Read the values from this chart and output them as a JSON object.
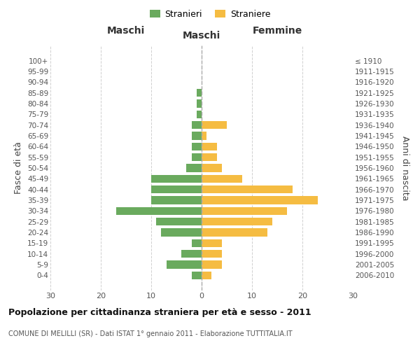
{
  "age_groups": [
    "100+",
    "95-99",
    "90-94",
    "85-89",
    "80-84",
    "75-79",
    "70-74",
    "65-69",
    "60-64",
    "55-59",
    "50-54",
    "45-49",
    "40-44",
    "35-39",
    "30-34",
    "25-29",
    "20-24",
    "15-19",
    "10-14",
    "5-9",
    "0-4"
  ],
  "birth_years": [
    "≤ 1910",
    "1911-1915",
    "1916-1920",
    "1921-1925",
    "1926-1930",
    "1931-1935",
    "1936-1940",
    "1941-1945",
    "1946-1950",
    "1951-1955",
    "1956-1960",
    "1961-1965",
    "1966-1970",
    "1971-1975",
    "1976-1980",
    "1981-1985",
    "1986-1990",
    "1991-1995",
    "1996-2000",
    "2001-2005",
    "2006-2010"
  ],
  "maschi": [
    0,
    0,
    0,
    1,
    1,
    1,
    2,
    2,
    2,
    2,
    3,
    10,
    10,
    10,
    17,
    9,
    8,
    2,
    4,
    7,
    2
  ],
  "femmine": [
    0,
    0,
    0,
    0,
    0,
    0,
    5,
    1,
    3,
    3,
    4,
    8,
    18,
    23,
    17,
    14,
    13,
    4,
    4,
    4,
    2
  ],
  "color_maschi": "#6aaa5e",
  "color_femmine": "#f5bc42",
  "title": "Popolazione per cittadinanza straniera per età e sesso - 2011",
  "subtitle": "COMUNE DI MELILLI (SR) - Dati ISTAT 1° gennaio 2011 - Elaborazione TUTTITALIA.IT",
  "ylabel_left": "Fasce di età",
  "ylabel_right": "Anni di nascita",
  "xlabel_left": "Maschi",
  "xlabel_right": "Femmine",
  "legend_maschi": "Stranieri",
  "legend_femmine": "Straniere",
  "xlim": 30,
  "background_color": "#ffffff",
  "grid_color": "#d0d0d0"
}
